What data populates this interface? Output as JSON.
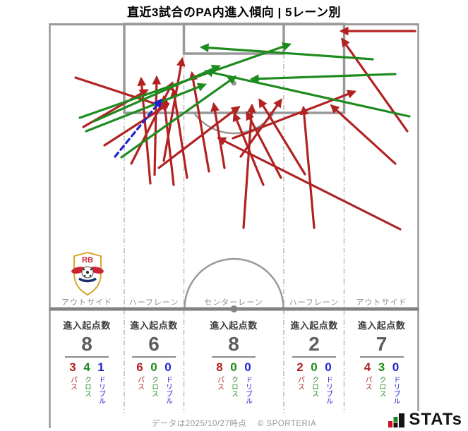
{
  "title": "直近3試合のPA内進入傾向 | 5レーン別",
  "labels": {
    "stat_header": "進入起点数",
    "pass": "パス",
    "cross": "クロス",
    "dribble": "ドリブル"
  },
  "colors": {
    "pass": "#b22222",
    "cross": "#1e8b1e",
    "dribble": "#2222cc",
    "pitch_line": "#999999",
    "halfway_line": "#828282",
    "lane_divider": "#b9b9b9"
  },
  "team_badge": {
    "initials": "RB"
  },
  "footer": {
    "note": "データは2025/10/27時点",
    "credit": "© SPORTERIA",
    "logo_text": "STATs"
  },
  "chart_data": {
    "type": "pitch-arrows",
    "title": "直近3試合のPA内進入傾向 | 5レーン別",
    "description": "Attacking half pitch, goal at top; arrows show penalty-area entries by origin lane; red=pass, green=cross, blue dashed=dribble",
    "categories": [
      "アウトサイド",
      "ハーフレーン",
      "センターレーン",
      "ハーフレーン",
      "アウトサイド"
    ],
    "totals": [
      8,
      6,
      8,
      2,
      7
    ],
    "series": [
      {
        "name": "パス",
        "kind": "pass",
        "color": "#b22222",
        "values": [
          3,
          6,
          8,
          2,
          4
        ]
      },
      {
        "name": "クロス",
        "kind": "cross",
        "color": "#1e8b1e",
        "values": [
          4,
          0,
          0,
          0,
          3
        ]
      },
      {
        "name": "ドリブル",
        "kind": "dribble",
        "color": "#2222cc",
        "values": [
          1,
          0,
          0,
          0,
          0
        ]
      }
    ],
    "arrows": [
      {
        "kind": "pass",
        "from": [
          107,
          110
        ],
        "to": [
          235,
          152
        ]
      },
      {
        "kind": "pass",
        "from": [
          148,
          206
        ],
        "to": [
          238,
          148
        ]
      },
      {
        "kind": "pass",
        "from": [
          118,
          180
        ],
        "to": [
          208,
          128
        ]
      },
      {
        "kind": "pass",
        "from": [
          213,
          260
        ],
        "to": [
          200,
          112
        ]
      },
      {
        "kind": "pass",
        "from": [
          219,
          248
        ],
        "to": [
          222,
          110
        ]
      },
      {
        "kind": "pass",
        "from": [
          232,
          228
        ],
        "to": [
          258,
          84
        ]
      },
      {
        "kind": "pass",
        "from": [
          246,
          262
        ],
        "to": [
          232,
          138
        ]
      },
      {
        "kind": "pass",
        "from": [
          186,
          232
        ],
        "to": [
          244,
          118
        ]
      },
      {
        "kind": "pass",
        "from": [
          225,
          238
        ],
        "to": [
          338,
          152
        ]
      },
      {
        "kind": "pass",
        "from": [
          265,
          252
        ],
        "to": [
          246,
          128
        ]
      },
      {
        "kind": "pass",
        "from": [
          296,
          243
        ],
        "to": [
          272,
          104
        ]
      },
      {
        "kind": "pass",
        "from": [
          318,
          238
        ],
        "to": [
          303,
          148
        ]
      },
      {
        "kind": "pass",
        "from": [
          373,
          262
        ],
        "to": [
          332,
          162
        ]
      },
      {
        "kind": "pass",
        "from": [
          341,
          222
        ],
        "to": [
          398,
          142
        ]
      },
      {
        "kind": "pass",
        "from": [
          345,
          323
        ],
        "to": [
          357,
          150
        ]
      },
      {
        "kind": "pass",
        "from": [
          330,
          196
        ],
        "to": [
          502,
          130
        ]
      },
      {
        "kind": "pass",
        "from": [
          398,
          252
        ],
        "to": [
          350,
          160
        ]
      },
      {
        "kind": "pass",
        "from": [
          432,
          247
        ],
        "to": [
          368,
          142
        ]
      },
      {
        "kind": "pass",
        "from": [
          445,
          323
        ],
        "to": [
          430,
          153
        ]
      },
      {
        "kind": "pass",
        "from": [
          588,
          44
        ],
        "to": [
          484,
          44
        ]
      },
      {
        "kind": "pass",
        "from": [
          577,
          186
        ],
        "to": [
          485,
          56
        ]
      },
      {
        "kind": "pass",
        "from": [
          567,
          325
        ],
        "to": [
          310,
          196
        ]
      },
      {
        "kind": "pass",
        "from": [
          560,
          232
        ],
        "to": [
          470,
          150
        ]
      },
      {
        "kind": "cross",
        "from": [
          113,
          167
        ],
        "to": [
          410,
          63
        ]
      },
      {
        "kind": "cross",
        "from": [
          133,
          172
        ],
        "to": [
          310,
          94
        ]
      },
      {
        "kind": "cross",
        "from": [
          172,
          223
        ],
        "to": [
          333,
          109
        ]
      },
      {
        "kind": "cross",
        "from": [
          122,
          186
        ],
        "to": [
          290,
          120
        ]
      },
      {
        "kind": "cross",
        "from": [
          528,
          84
        ],
        "to": [
          286,
          67
        ]
      },
      {
        "kind": "cross",
        "from": [
          560,
          105
        ],
        "to": [
          357,
          112
        ]
      },
      {
        "kind": "cross",
        "from": [
          580,
          165
        ],
        "to": [
          292,
          101
        ]
      },
      {
        "kind": "dribble",
        "from": [
          163,
          222
        ],
        "to": [
          228,
          142
        ]
      }
    ]
  }
}
